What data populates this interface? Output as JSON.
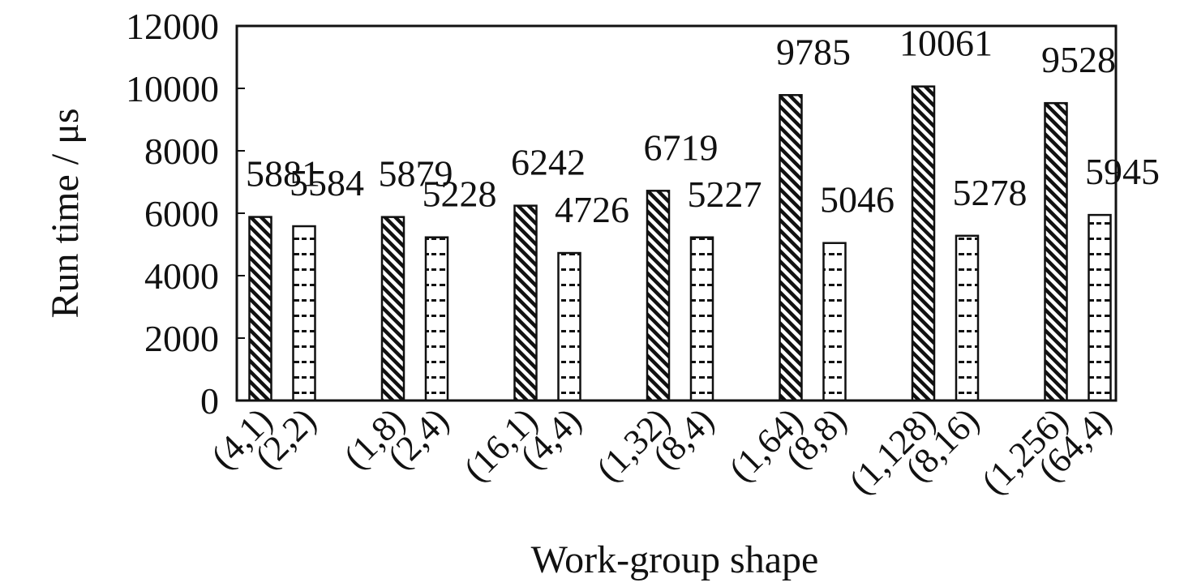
{
  "chart_data": {
    "type": "bar",
    "title": "",
    "xlabel": "Work-group  shape",
    "ylabel": "Run time  / μs",
    "ylim": [
      0,
      12000
    ],
    "yticks": [
      0,
      2000,
      4000,
      6000,
      8000,
      10000,
      12000
    ],
    "grid": false,
    "legend": "none",
    "groups": [
      {
        "bars": [
          {
            "category": "(4,1)",
            "value": 5881
          },
          {
            "category": "(2,2)",
            "value": 5584
          }
        ]
      },
      {
        "bars": [
          {
            "category": "(1,8)",
            "value": 5879
          },
          {
            "category": "(2,4)",
            "value": 5228
          }
        ]
      },
      {
        "bars": [
          {
            "category": "(16,1)",
            "value": 6242
          },
          {
            "category": "(4,4)",
            "value": 4726
          }
        ]
      },
      {
        "bars": [
          {
            "category": "(1,32)",
            "value": 6719
          },
          {
            "category": "(8,4)",
            "value": 5227
          }
        ]
      },
      {
        "bars": [
          {
            "category": "(1,64)",
            "value": 9785
          },
          {
            "category": "(8,8)",
            "value": 5046
          }
        ]
      },
      {
        "bars": [
          {
            "category": "(1,128)",
            "value": 10061
          },
          {
            "category": "(8,16)",
            "value": 5278
          }
        ]
      },
      {
        "bars": [
          {
            "category": "(1,256)",
            "value": 9528
          },
          {
            "category": "(64,4)",
            "value": 5945
          }
        ]
      }
    ],
    "series_styles": [
      "diagonal-hatch",
      "dash-hatch"
    ],
    "colors": {
      "ink": "#111111",
      "background": "#ffffff"
    }
  }
}
